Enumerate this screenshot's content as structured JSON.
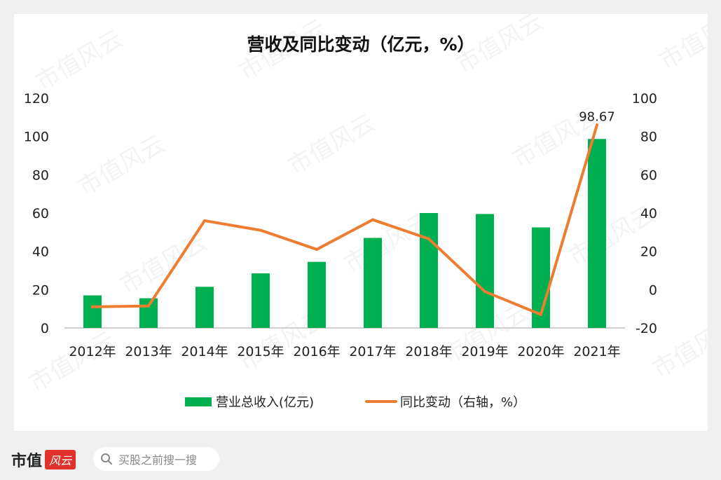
{
  "watermark_text": "市值风云",
  "footer": {
    "brand": "市值",
    "brand_seal": "风云",
    "search_placeholder": "买股之前搜一搜",
    "search_icon": "search-icon"
  },
  "chart_data": {
    "type": "bar",
    "title": "营收及同比变动（亿元，%）",
    "categories": [
      "2012年",
      "2013年",
      "2014年",
      "2015年",
      "2016年",
      "2017年",
      "2018年",
      "2019年",
      "2020年",
      "2021年"
    ],
    "series": [
      {
        "name": "营业总收入(亿元)",
        "type": "bar",
        "axis": "left",
        "color": "#00b050",
        "values": [
          17,
          15.5,
          21.5,
          28.5,
          34.5,
          47,
          60,
          59.5,
          52.5,
          98.67
        ]
      },
      {
        "name": "同比变动（右轴，%）",
        "type": "line",
        "axis": "right",
        "color": "#ed7d31",
        "values": [
          -9,
          -8.5,
          36,
          31,
          21,
          36.5,
          26.5,
          -1,
          -13,
          86
        ]
      }
    ],
    "data_labels": [
      {
        "series": 0,
        "index": 9,
        "text": "98.67"
      }
    ],
    "y_left": {
      "min": 0,
      "max": 120,
      "ticks": [
        "0",
        "20",
        "40",
        "60",
        "80",
        "100",
        "120"
      ]
    },
    "y_right": {
      "min": -20,
      "max": 100,
      "ticks": [
        "-20",
        "0",
        "20",
        "40",
        "60",
        "80",
        "100"
      ]
    },
    "grid": false,
    "legend_position": "bottom"
  }
}
